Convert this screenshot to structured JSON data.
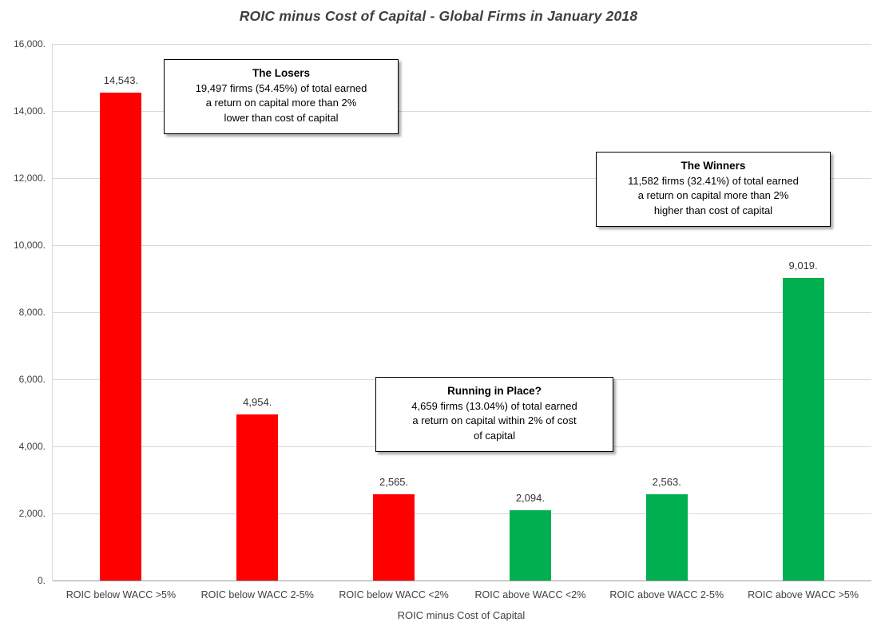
{
  "chart_data": {
    "type": "bar",
    "title": "ROIC minus Cost of Capital - Global Firms in January 2018",
    "xlabel": "ROIC minus Cost of Capital",
    "ylabel": "",
    "ylim": [
      0,
      16000
    ],
    "ytick_step": 2000,
    "ytick_labels": [
      "0.",
      "2,000.",
      "4,000.",
      "6,000.",
      "8,000.",
      "10,000.",
      "12,000.",
      "14,000.",
      "16,000."
    ],
    "grid": true,
    "legend": "none",
    "categories": [
      "ROIC below WACC >5%",
      "ROIC below WACC 2-5%",
      "ROIC below WACC <2%",
      "ROIC above WACC <2%",
      "ROIC above WACC 2-5%",
      "ROIC above WACC >5%"
    ],
    "values": [
      14543,
      4954,
      2565,
      2094,
      2563,
      9019
    ],
    "value_labels": [
      "14,543.",
      "4,954.",
      "2,565.",
      "2,094.",
      "2,563.",
      "9,019."
    ],
    "bar_colors": [
      "#FF0000",
      "#FF0000",
      "#FF0000",
      "#00B050",
      "#00B050",
      "#00B050"
    ],
    "colors": {
      "losers_red": "#FF0000",
      "winners_green": "#00B050",
      "gridline_gray": "#D9D9D9"
    },
    "annotations": {
      "losers": {
        "title": "The Losers",
        "body": "19,497 firms (54.45%) of total earned\na return on capital more than 2%\nlower than cost of capital"
      },
      "winners": {
        "title": "The Winners",
        "body": "11,582 firms (32.41%) of total earned\na return on capital more than  2%\nhigher than cost of capital"
      },
      "running": {
        "title": "Running in Place?",
        "body": "4,659 firms (13.04%) of total earned\na return on capital within 2% of cost\nof capital"
      }
    }
  }
}
